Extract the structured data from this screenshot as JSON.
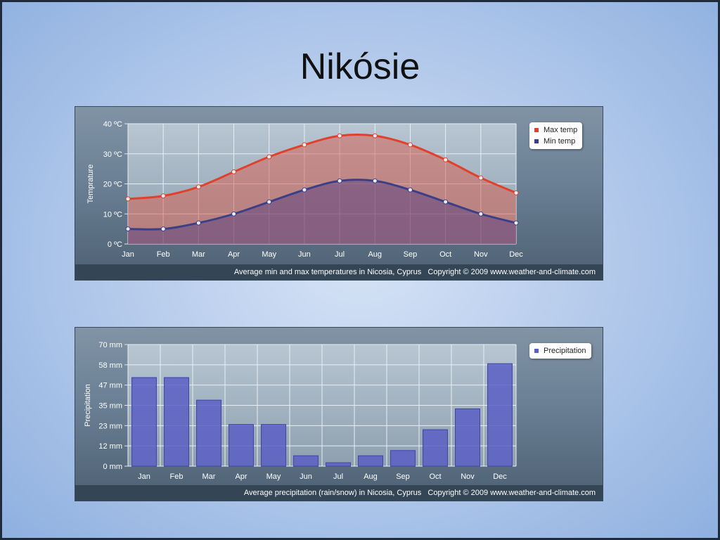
{
  "slide": {
    "title": "Nikósie"
  },
  "chart_data": [
    {
      "type": "line",
      "categories": [
        "Jan",
        "Feb",
        "Mar",
        "Apr",
        "May",
        "Jun",
        "Jul",
        "Aug",
        "Sep",
        "Oct",
        "Nov",
        "Dec"
      ],
      "series": [
        {
          "name": "Max temp",
          "color": "#e0412c",
          "values": [
            15,
            16,
            19,
            24,
            29,
            33,
            36,
            36,
            33,
            28,
            22,
            17
          ]
        },
        {
          "name": "Min temp",
          "color": "#3d3f86",
          "values": [
            5,
            5,
            7,
            10,
            14,
            18,
            21,
            21,
            18,
            14,
            10,
            7
          ]
        }
      ],
      "ylabel": "Temprature",
      "ylim": [
        0,
        40
      ],
      "yticks": [
        "0 ºC",
        "10 ºC",
        "20 ºC",
        "30 ºC",
        "40 ºC"
      ],
      "grid": true,
      "legend_placement": "top-right",
      "caption": "Average min and max temperatures in Nicosia, Cyprus",
      "copyright": "Copyright © 2009 www.weather-and-climate.com"
    },
    {
      "type": "bar",
      "categories": [
        "Jan",
        "Feb",
        "Mar",
        "Apr",
        "May",
        "Jun",
        "Jul",
        "Aug",
        "Sep",
        "Oct",
        "Nov",
        "Dec"
      ],
      "series": [
        {
          "name": "Precipitation",
          "color": "#5a5fc4",
          "values": [
            51,
            51,
            38,
            24,
            24,
            6,
            2,
            6,
            9,
            21,
            33,
            59
          ]
        }
      ],
      "ylabel": "Precipitation",
      "ylim": [
        0,
        70
      ],
      "yticks": [
        "0 mm",
        "12 mm",
        "23 mm",
        "35 mm",
        "47 mm",
        "58 mm",
        "70 mm"
      ],
      "grid": true,
      "legend_placement": "top-right",
      "caption": "Average precipitation (rain/snow) in Nicosia, Cyprus",
      "copyright": "Copyright © 2009 www.weather-and-climate.com"
    }
  ]
}
